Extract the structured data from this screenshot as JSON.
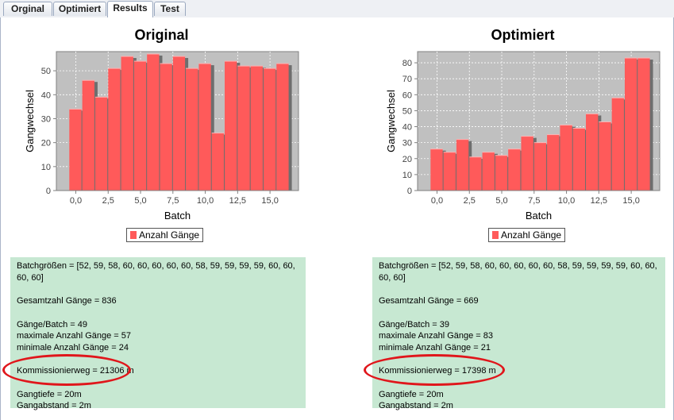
{
  "tabs": [
    {
      "label": "Orginal"
    },
    {
      "label": "Optimiert"
    },
    {
      "label": "Results"
    },
    {
      "label": "Test"
    }
  ],
  "active_tab": "Results",
  "bar_color": "#ff5a5a",
  "plot_background": "#c0c0c0",
  "info_background": "#c7e8d2",
  "highlight_color": "#e0161b",
  "chart_data": [
    {
      "type": "bar",
      "title": "Original",
      "xlabel": "Batch",
      "ylabel": "Gangwechsel",
      "x": [
        0,
        1,
        2,
        3,
        4,
        5,
        6,
        7,
        8,
        9,
        10,
        11,
        12,
        13,
        14,
        15,
        16
      ],
      "values": [
        34,
        46,
        39,
        51,
        56,
        54,
        57,
        53,
        56,
        51,
        53,
        24,
        54,
        52,
        52,
        51,
        53
      ],
      "xlim": [
        -1.5,
        17.2
      ],
      "ylim": [
        0,
        58
      ],
      "xticks": [
        "0,0",
        "2,5",
        "5,0",
        "7,5",
        "10,0",
        "12,5",
        "15,0"
      ],
      "xtick_values": [
        0,
        2.5,
        5,
        7.5,
        10,
        12.5,
        15
      ],
      "yticks": [
        "0",
        "10",
        "20",
        "30",
        "40",
        "50"
      ],
      "ytick_values": [
        0,
        10,
        20,
        30,
        40,
        50
      ],
      "legend": "Anzahl Gänge",
      "grid": true
    },
    {
      "type": "bar",
      "title": "Optimiert",
      "xlabel": "Batch",
      "ylabel": "Gangwechsel",
      "x": [
        0,
        1,
        2,
        3,
        4,
        5,
        6,
        7,
        8,
        9,
        10,
        11,
        12,
        13,
        14,
        15,
        16
      ],
      "values": [
        26,
        24,
        32,
        21,
        24,
        22,
        26,
        34,
        30,
        35,
        41,
        39,
        48,
        43,
        58,
        83,
        83
      ],
      "xlim": [
        -1.5,
        17.2
      ],
      "ylim": [
        0,
        87
      ],
      "xticks": [
        "0,0",
        "2,5",
        "5,0",
        "7,5",
        "10,0",
        "12,5",
        "15,0"
      ],
      "xtick_values": [
        0,
        2.5,
        5,
        7.5,
        10,
        12.5,
        15
      ],
      "yticks": [
        "0",
        "10",
        "20",
        "30",
        "40",
        "50",
        "60",
        "70",
        "80"
      ],
      "ytick_values": [
        0,
        10,
        20,
        30,
        40,
        50,
        60,
        70,
        80
      ],
      "legend": "Anzahl Gänge",
      "grid": true
    }
  ],
  "results": [
    {
      "batchgroessen": "Batchgrößen = [52, 59, 58, 60, 60, 60, 60, 60, 58, 59, 59, 59, 59, 60, 60,",
      "batchgroessen_cont": "60, 60]",
      "gesamtzahl": "Gesamtzahl Gänge = 836",
      "gaenge_batch": "Gänge/Batch = 49",
      "max_gaenge": "maximale Anzahl Gänge = 57",
      "min_gaenge": "minimale Anzahl Gänge = 24",
      "kommissionierweg": "Kommissionierweg = 21306 m",
      "gangtiefe": "Gangtiefe = 20m",
      "gangabstand": "Gangabstand = 2m"
    },
    {
      "batchgroessen": "Batchgrößen = [52, 59, 58, 60, 60, 60, 60, 60, 58, 59, 59, 59, 59, 60, 60,",
      "batchgroessen_cont": "60, 60]",
      "gesamtzahl": "Gesamtzahl Gänge = 669",
      "gaenge_batch": "Gänge/Batch = 39",
      "max_gaenge": "maximale Anzahl Gänge = 83",
      "min_gaenge": "minimale Anzahl Gänge = 21",
      "kommissionierweg": "Kommissionierweg = 17398 m",
      "gangtiefe": "Gangtiefe = 20m",
      "gangabstand": "Gangabstand = 2m"
    }
  ]
}
